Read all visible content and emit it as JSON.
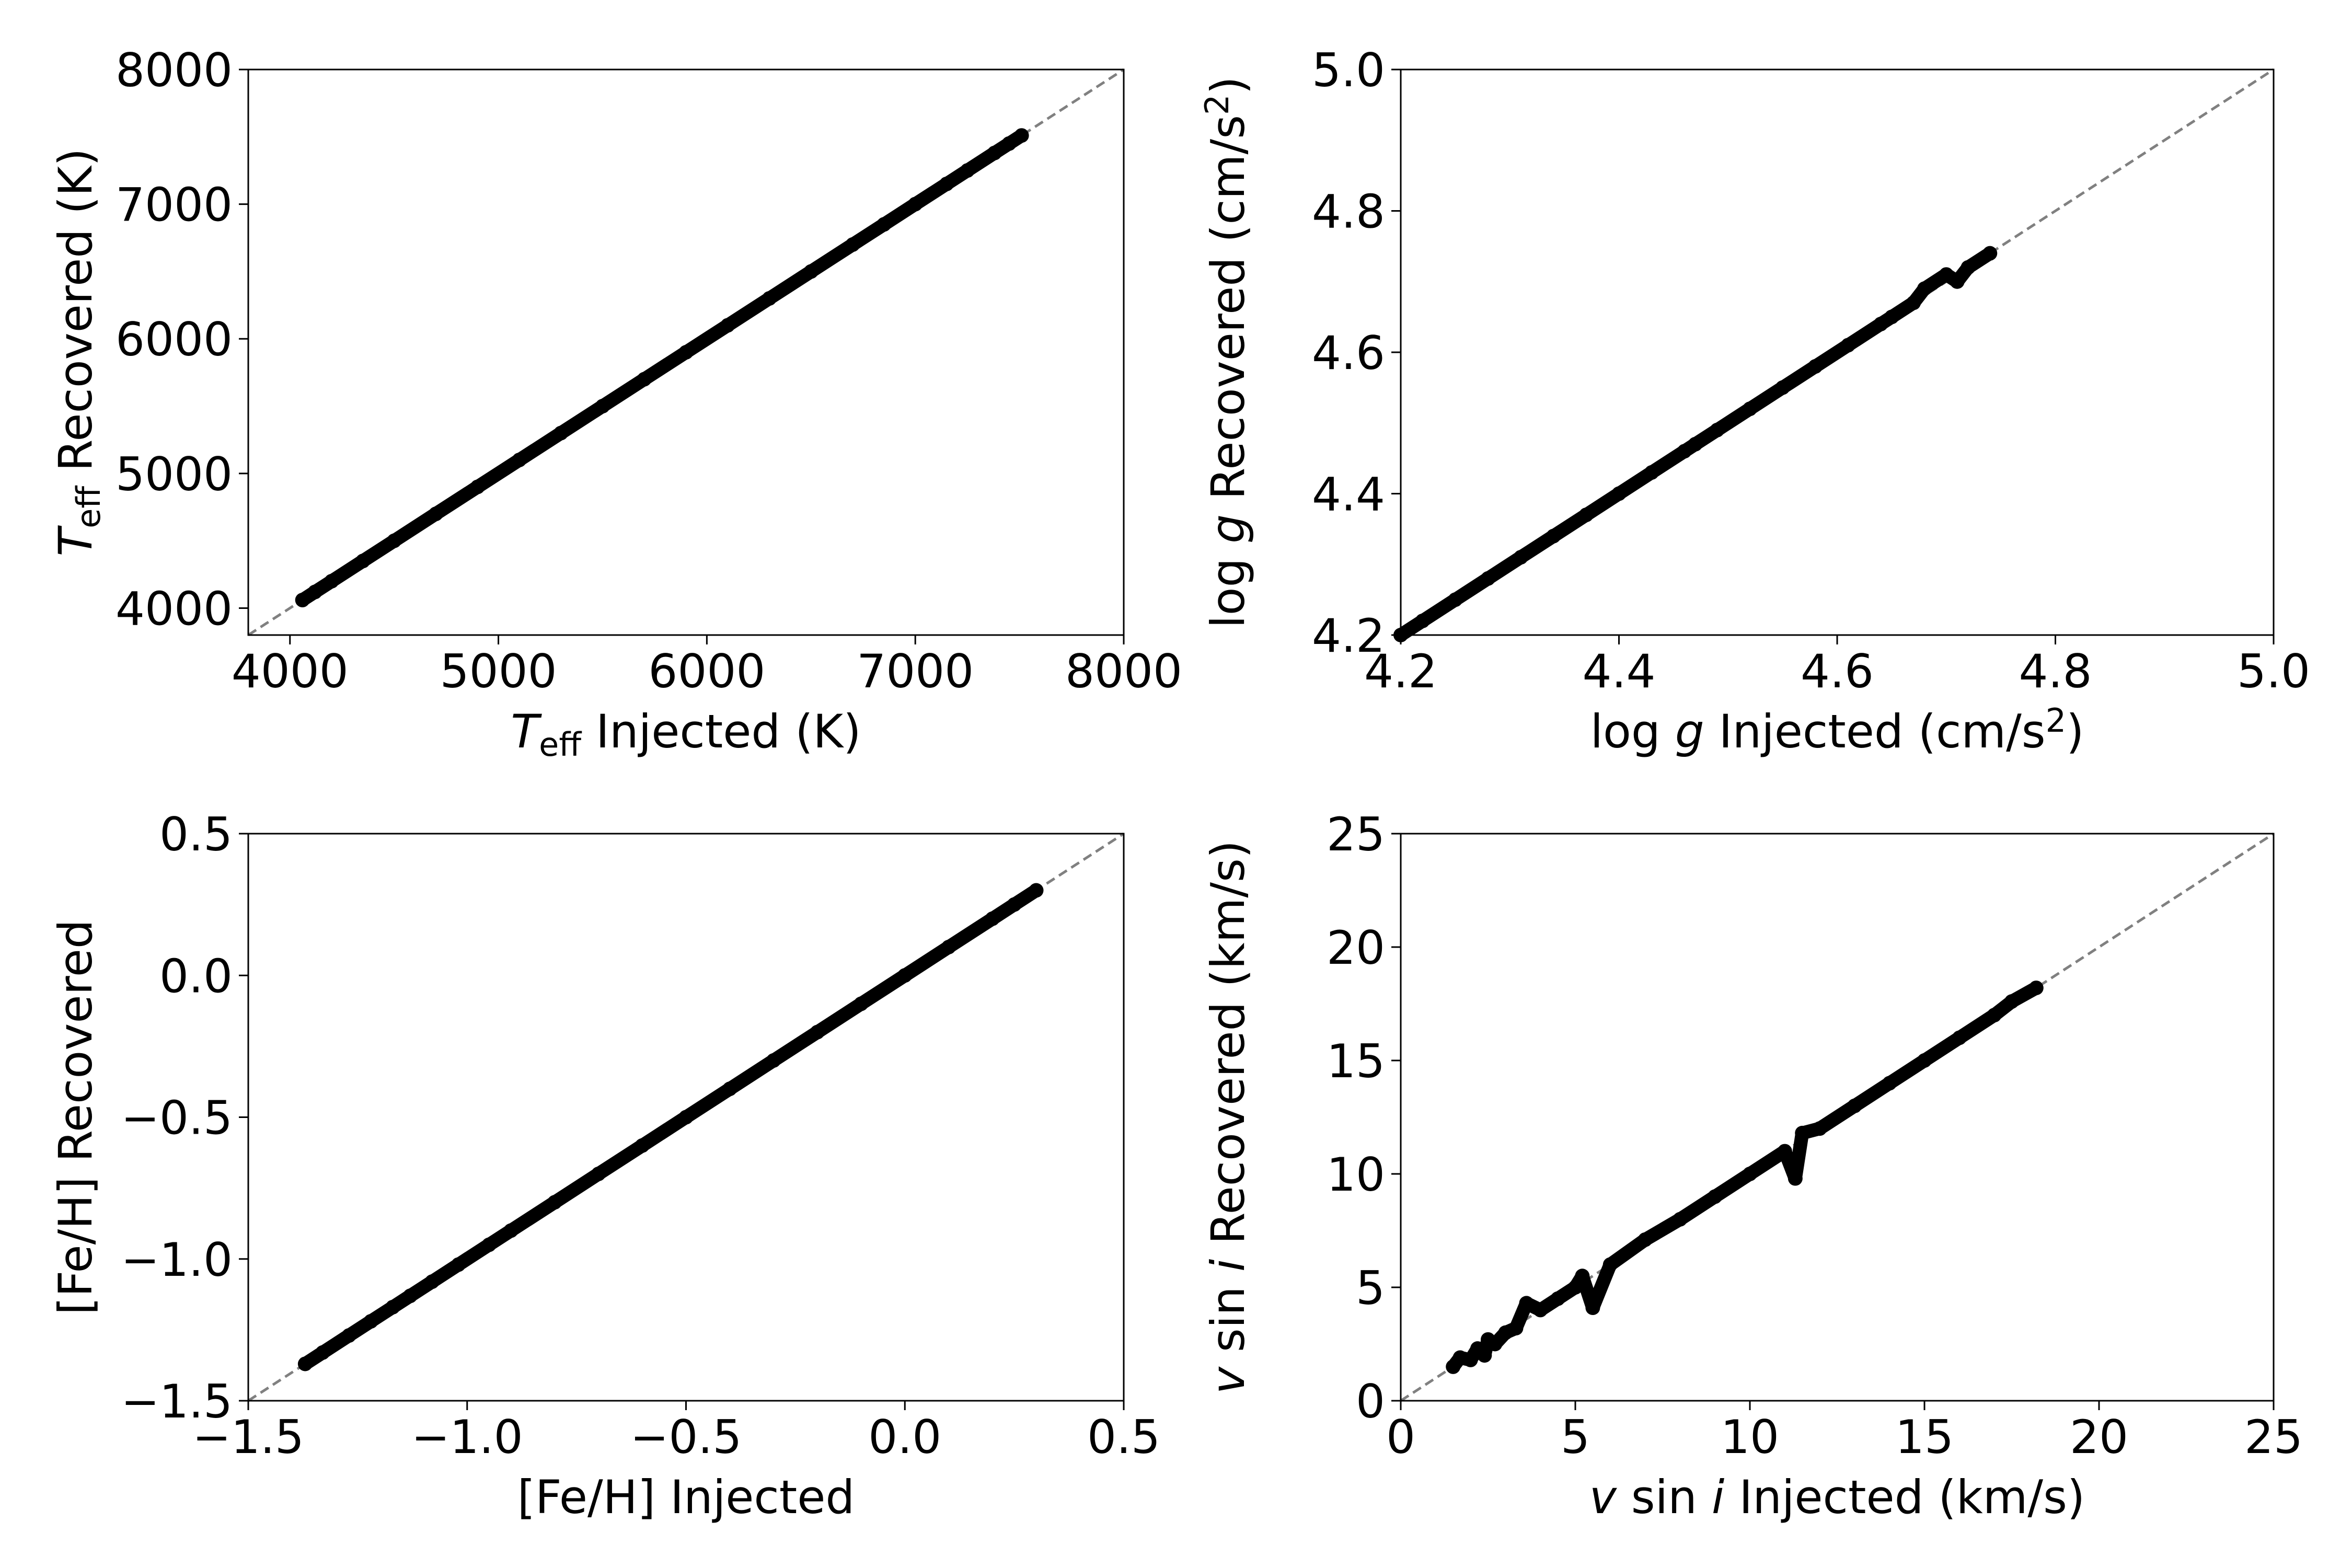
{
  "chart_data": [
    {
      "type": "scatter",
      "xlim": [
        3800,
        8000
      ],
      "ylim": [
        3800,
        8000
      ],
      "xticks": [
        "4000",
        "5000",
        "6000",
        "7000",
        "8000"
      ],
      "yticks": [
        "4000",
        "5000",
        "6000",
        "7000",
        "8000"
      ],
      "xlabel": {
        "sym": "T",
        "sub": "eff",
        "text": " Injected (K)"
      },
      "ylabel": {
        "sym": "T",
        "sub": "eff",
        "text": " Recovered (K)"
      },
      "identity_line": true,
      "grid": false,
      "points": [
        [
          4060,
          4060
        ],
        [
          4120,
          4120
        ],
        [
          4200,
          4200
        ],
        [
          4350,
          4350
        ],
        [
          4500,
          4500
        ],
        [
          4700,
          4700
        ],
        [
          4900,
          4900
        ],
        [
          5100,
          5100
        ],
        [
          5300,
          5300
        ],
        [
          5500,
          5500
        ],
        [
          5700,
          5700
        ],
        [
          5900,
          5900
        ],
        [
          6100,
          6100
        ],
        [
          6300,
          6300
        ],
        [
          6500,
          6500
        ],
        [
          6700,
          6700
        ],
        [
          6850,
          6850
        ],
        [
          7000,
          7000
        ],
        [
          7150,
          7150
        ],
        [
          7250,
          7250
        ],
        [
          7380,
          7380
        ],
        [
          7450,
          7450
        ],
        [
          7510,
          7510
        ]
      ]
    },
    {
      "type": "scatter",
      "xlim": [
        4.2,
        5.0
      ],
      "ylim": [
        4.2,
        5.0
      ],
      "xticks": [
        "4.2",
        "4.4",
        "4.6",
        "4.8",
        "5.0"
      ],
      "yticks": [
        "4.2",
        "4.4",
        "4.6",
        "4.8",
        "5.0"
      ],
      "xlabel": {
        "pre": "log ",
        "sym": "g",
        "text": " Injected (cm/s",
        "sup": "2",
        "post": ")"
      },
      "ylabel": {
        "pre": "log ",
        "sym": "g",
        "text": " Recovered (cm/s",
        "sup": "2",
        "post": ")"
      },
      "identity_line": true,
      "grid": false,
      "points": [
        [
          4.2,
          4.2
        ],
        [
          4.22,
          4.22
        ],
        [
          4.25,
          4.25
        ],
        [
          4.28,
          4.28
        ],
        [
          4.31,
          4.31
        ],
        [
          4.34,
          4.34
        ],
        [
          4.37,
          4.37
        ],
        [
          4.4,
          4.4
        ],
        [
          4.43,
          4.43
        ],
        [
          4.46,
          4.46
        ],
        [
          4.47,
          4.47
        ],
        [
          4.49,
          4.49
        ],
        [
          4.52,
          4.52
        ],
        [
          4.55,
          4.55
        ],
        [
          4.58,
          4.58
        ],
        [
          4.61,
          4.61
        ],
        [
          4.64,
          4.64
        ],
        [
          4.65,
          4.65
        ],
        [
          4.67,
          4.67
        ],
        [
          4.68,
          4.69
        ],
        [
          4.7,
          4.71
        ],
        [
          4.71,
          4.7
        ],
        [
          4.72,
          4.72
        ],
        [
          4.74,
          4.74
        ]
      ]
    },
    {
      "type": "scatter",
      "xlim": [
        -1.5,
        0.5
      ],
      "ylim": [
        -1.5,
        0.5
      ],
      "xticks": [
        "−1.5",
        "−1.0",
        "−0.5",
        "0.0",
        "0.5"
      ],
      "yticks": [
        "−1.5",
        "−1.0",
        "−0.5",
        "0.0",
        "0.5"
      ],
      "xlabel": {
        "text": "[Fe/H] Injected"
      },
      "ylabel": {
        "text": "[Fe/H] Recovered"
      },
      "identity_line": true,
      "grid": false,
      "points": [
        [
          -1.37,
          -1.37
        ],
        [
          -1.33,
          -1.33
        ],
        [
          -1.27,
          -1.27
        ],
        [
          -1.22,
          -1.22
        ],
        [
          -1.17,
          -1.17
        ],
        [
          -1.13,
          -1.13
        ],
        [
          -1.08,
          -1.08
        ],
        [
          -1.02,
          -1.02
        ],
        [
          -0.95,
          -0.95
        ],
        [
          -0.9,
          -0.9
        ],
        [
          -0.8,
          -0.8
        ],
        [
          -0.7,
          -0.7
        ],
        [
          -0.6,
          -0.6
        ],
        [
          -0.5,
          -0.5
        ],
        [
          -0.4,
          -0.4
        ],
        [
          -0.3,
          -0.3
        ],
        [
          -0.2,
          -0.2
        ],
        [
          -0.1,
          -0.1
        ],
        [
          0.0,
          0.0
        ],
        [
          0.1,
          0.1
        ],
        [
          0.2,
          0.2
        ],
        [
          0.25,
          0.25
        ],
        [
          0.3,
          0.3
        ]
      ]
    },
    {
      "type": "scatter",
      "xlim": [
        0,
        25
      ],
      "ylim": [
        0,
        25
      ],
      "xticks": [
        "0",
        "5",
        "10",
        "15",
        "20",
        "25"
      ],
      "yticks": [
        "0",
        "5",
        "10",
        "15",
        "20",
        "25"
      ],
      "xlabel": {
        "sym": "v",
        "text": " sin ",
        "sym2": "i",
        "post": " Injected (km/s)"
      },
      "ylabel": {
        "sym": "v",
        "text": " sin ",
        "sym2": "i",
        "post": " Recovered (km/s)"
      },
      "identity_line": true,
      "grid": false,
      "points": [
        [
          1.5,
          1.5
        ],
        [
          1.7,
          1.9
        ],
        [
          2.0,
          1.8
        ],
        [
          2.2,
          2.3
        ],
        [
          2.4,
          2.0
        ],
        [
          2.5,
          2.7
        ],
        [
          2.7,
          2.5
        ],
        [
          3.0,
          3.0
        ],
        [
          3.3,
          3.2
        ],
        [
          3.6,
          4.3
        ],
        [
          4.0,
          4.0
        ],
        [
          4.5,
          4.5
        ],
        [
          5.0,
          5.0
        ],
        [
          5.2,
          5.5
        ],
        [
          5.5,
          4.1
        ],
        [
          6.0,
          6.0
        ],
        [
          7.0,
          7.1
        ],
        [
          8.0,
          8.0
        ],
        [
          9.0,
          9.0
        ],
        [
          10.0,
          10.0
        ],
        [
          11.0,
          11.0
        ],
        [
          11.3,
          9.8
        ],
        [
          11.5,
          11.8
        ],
        [
          12.0,
          12.0
        ],
        [
          13.0,
          13.0
        ],
        [
          14.0,
          14.0
        ],
        [
          15.0,
          15.0
        ],
        [
          16.0,
          16.0
        ],
        [
          17.0,
          17.0
        ],
        [
          17.5,
          17.6
        ],
        [
          18.2,
          18.2
        ]
      ]
    }
  ]
}
